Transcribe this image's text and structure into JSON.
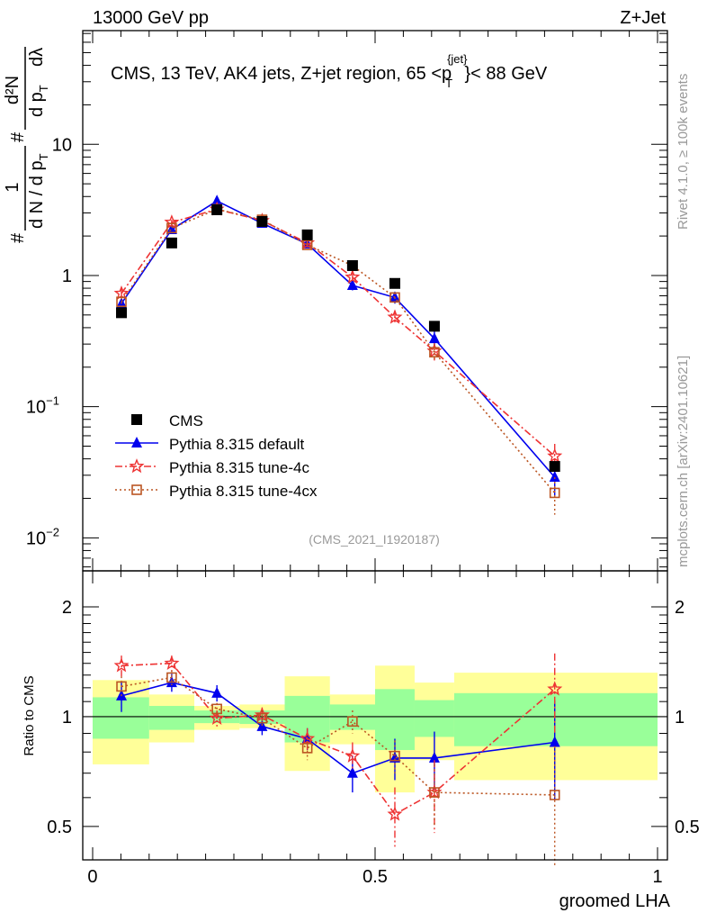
{
  "header": {
    "left": "13000 GeV pp",
    "right": "Z+Jet"
  },
  "side_text": {
    "rivet": "Rivet 4.1.0, ≥ 100k events",
    "mcplots": "mcplots.cern.ch [arXiv:2401.10621]"
  },
  "analysis_id": "(CMS_2021_I1920187)",
  "colors": {
    "cms": "#000000",
    "default": "#0000ee",
    "tune4c": "#ee3333",
    "tune4cx": "#bb5522",
    "band_inner": "#99ff99",
    "band_outer": "#ffff99"
  },
  "chart_data": [
    {
      "type": "line",
      "scale": "log",
      "title": "CMS, 13 TeV, AK4 jets, Z+jet region, 65 <p_T^{jet}< 88 GeV",
      "title_parts": {
        "main": "CMS, 13 TeV, AK4 jets, Z+jet region, 65 <p",
        "sup": "{jet}",
        "sub": "T",
        "end": "}< 88 GeV"
      },
      "ylabel": "1/N dN/dp_T d²N/dp_T dλ",
      "ylabel_parts": {
        "num1": "1",
        "den1": "d N / d p",
        "sub1": "T",
        "num2": "d²N",
        "den2": "d p",
        "sub2": "T",
        "dl": "dλ",
        "hash": "#"
      },
      "xlim": [
        -0.0175,
        1.0175
      ],
      "ylim": [
        0.0056,
        73.6
      ],
      "yticks": [
        {
          "value": 0.01,
          "base": "10",
          "exp": "−2"
        },
        {
          "value": 0.1,
          "base": "10",
          "exp": "−1"
        },
        {
          "value": 1,
          "base": "1",
          "exp": ""
        },
        {
          "value": 10,
          "base": "10",
          "exp": ""
        }
      ],
      "bin_edges": [
        0,
        0.1,
        0.18,
        0.26,
        0.34,
        0.42,
        0.5,
        0.57,
        0.64,
        1.0
      ],
      "x": [
        0.051,
        0.14,
        0.22,
        0.3,
        0.38,
        0.46,
        0.535,
        0.605,
        0.818
      ],
      "legend": {
        "placement": "lower-left"
      },
      "series": [
        {
          "name": "CMS",
          "key": "cms",
          "marker": "square-filled",
          "values": [
            0.52,
            1.77,
            3.17,
            2.58,
            2.04,
            1.19,
            0.87,
            0.41,
            0.035
          ]
        },
        {
          "name": "Pythia 8.315 default",
          "key": "default",
          "marker": "triangle",
          "values": [
            0.61,
            2.24,
            3.7,
            2.5,
            1.74,
            0.84,
            0.68,
            0.33,
            0.029
          ],
          "errors": [
            0.05,
            0.12,
            0.15,
            0.1,
            0.08,
            0.07,
            0.07,
            0.05,
            0.008
          ]
        },
        {
          "name": "Pythia 8.315 tune-4c",
          "key": "tune4c",
          "marker": "star",
          "values": [
            0.73,
            2.54,
            3.2,
            2.62,
            1.77,
            0.97,
            0.48,
            0.265,
            0.042
          ],
          "errors": [
            0.06,
            0.12,
            0.12,
            0.1,
            0.08,
            0.08,
            0.06,
            0.04,
            0.01
          ]
        },
        {
          "name": "Pythia 8.315 tune-4cx",
          "key": "tune4cx",
          "marker": "square-open",
          "values": [
            0.63,
            2.3,
            3.2,
            2.66,
            1.71,
            1.19,
            0.68,
            0.26,
            0.022
          ],
          "errors": [
            0.05,
            0.1,
            0.12,
            0.1,
            0.08,
            0.08,
            0.06,
            0.04,
            0.007
          ]
        }
      ]
    },
    {
      "type": "line",
      "scale": "log",
      "ylabel": "Ratio to CMS",
      "xlabel": "groomed LHA",
      "xlim": [
        -0.0175,
        1.0175
      ],
      "ylim": [
        0.405,
        2.51
      ],
      "xticks": [
        {
          "value": 0,
          "label": "0"
        },
        {
          "value": 0.5,
          "label": "0.5"
        },
        {
          "value": 1,
          "label": "1"
        }
      ],
      "yticks": [
        {
          "value": 0.5,
          "label": "0.5"
        },
        {
          "value": 1,
          "label": "1"
        },
        {
          "value": 2,
          "label": "2"
        }
      ],
      "bin_edges": [
        0,
        0.1,
        0.18,
        0.26,
        0.34,
        0.42,
        0.5,
        0.57,
        0.64,
        1.0
      ],
      "bands": {
        "inner": {
          "lo": [
            0.87,
            0.92,
            0.96,
            0.955,
            0.85,
            0.92,
            0.81,
            0.88,
            0.83
          ],
          "hi": [
            1.13,
            1.07,
            1.04,
            1.04,
            1.14,
            1.08,
            1.19,
            1.11,
            1.16
          ]
        },
        "outer": {
          "lo": [
            0.74,
            0.85,
            0.92,
            0.93,
            0.71,
            0.84,
            0.62,
            0.76,
            0.67
          ],
          "hi": [
            1.26,
            1.15,
            1.07,
            1.08,
            1.29,
            1.15,
            1.38,
            1.24,
            1.32
          ]
        }
      },
      "x": [
        0.051,
        0.14,
        0.22,
        0.3,
        0.38,
        0.46,
        0.535,
        0.605,
        0.818
      ],
      "series": [
        {
          "name": "Pythia 8.315 default",
          "key": "default",
          "marker": "triangle",
          "values": [
            1.14,
            1.24,
            1.16,
            0.94,
            0.87,
            0.7,
            0.77,
            0.77,
            0.85
          ],
          "errors": [
            0.11,
            0.07,
            0.06,
            0.05,
            0.06,
            0.08,
            0.1,
            0.14,
            0.26
          ]
        },
        {
          "name": "Pythia 8.315 tune-4c",
          "key": "tune4c",
          "marker": "star",
          "values": [
            1.38,
            1.4,
            0.99,
            1.01,
            0.87,
            0.78,
            0.54,
            0.62,
            1.19
          ],
          "errors": [
            0.09,
            0.07,
            0.05,
            0.05,
            0.06,
            0.07,
            0.1,
            0.14,
            0.3
          ]
        },
        {
          "name": "Pythia 8.315 tune-4cx",
          "key": "tune4cx",
          "marker": "square-open",
          "values": [
            1.21,
            1.28,
            1.05,
            0.99,
            0.82,
            0.97,
            0.78,
            0.62,
            0.61
          ],
          "errors": [
            0.08,
            0.06,
            0.04,
            0.05,
            0.06,
            0.07,
            0.08,
            0.12,
            0.22
          ]
        }
      ]
    }
  ]
}
